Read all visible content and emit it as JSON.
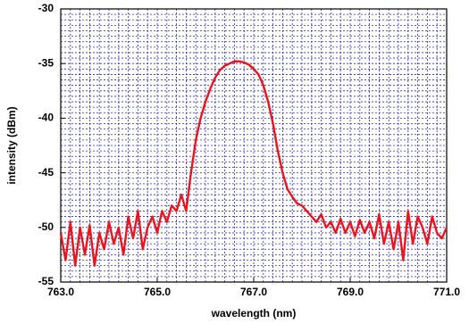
{
  "chart_data": {
    "type": "line",
    "xlabel": "wavelength (nm)",
    "ylabel": "intensity (dBm)",
    "xlim": [
      763,
      771
    ],
    "ylim": [
      -55,
      -30
    ],
    "xticks": [
      {
        "value": 763,
        "label": "763.0"
      },
      {
        "value": 765,
        "label": "765.0"
      },
      {
        "value": 767,
        "label": "767.0"
      },
      {
        "value": 769,
        "label": "769.0"
      },
      {
        "value": 771,
        "label": "771.0"
      }
    ],
    "yticks": [
      -55,
      -50,
      -45,
      -40,
      -35,
      -30
    ],
    "grid": true,
    "grid_color": "#2b2ba6",
    "x_minor_grid": [
      763,
      763.2,
      763.4,
      763.6,
      763.8,
      764,
      764.2,
      764.4,
      764.6,
      764.8,
      765,
      765.2,
      765.4,
      765.6,
      765.8,
      766,
      766.2,
      766.4,
      766.6,
      766.8,
      767,
      767.2,
      767.4,
      767.6,
      767.8,
      768,
      768.2,
      768.4,
      768.6,
      768.8,
      769,
      769.2,
      769.4,
      769.6,
      769.8,
      770,
      770.2,
      770.4,
      770.6,
      770.8,
      771
    ],
    "y_minor_grid": [
      -55,
      -54.5,
      -54,
      -53.5,
      -53,
      -52.5,
      -52,
      -51.5,
      -51,
      -50.5,
      -50,
      -49.5,
      -49,
      -48.5,
      -48,
      -47.5,
      -47,
      -46.5,
      -46,
      -45.5,
      -45,
      -44.5,
      -44,
      -43.5,
      -43,
      -42.5,
      -42,
      -41.5,
      -41,
      -40.5,
      -40,
      -39.5,
      -39,
      -38.5,
      -38,
      -37.5,
      -37,
      -36.5,
      -36,
      -35.5,
      -35,
      -34.5,
      -34,
      -33.5,
      -33,
      -32.5,
      -32,
      -31.5,
      -31,
      -30.5,
      -30
    ],
    "x": [
      763.0,
      763.1,
      763.2,
      763.3,
      763.4,
      763.5,
      763.6,
      763.7,
      763.8,
      763.9,
      764.0,
      764.1,
      764.2,
      764.3,
      764.4,
      764.5,
      764.6,
      764.7,
      764.8,
      764.9,
      765.0,
      765.1,
      765.2,
      765.3,
      765.4,
      765.5,
      765.6,
      765.7,
      765.8,
      765.9,
      766.0,
      766.1,
      766.2,
      766.3,
      766.4,
      766.5,
      766.6,
      766.7,
      766.8,
      766.9,
      767.0,
      767.1,
      767.2,
      767.3,
      767.4,
      767.5,
      767.6,
      767.7,
      767.8,
      767.9,
      768.0,
      768.1,
      768.2,
      768.3,
      768.4,
      768.5,
      768.6,
      768.7,
      768.8,
      768.9,
      769.0,
      769.1,
      769.2,
      769.3,
      769.4,
      769.5,
      769.6,
      769.7,
      769.8,
      769.9,
      770.0,
      770.1,
      770.2,
      770.3,
      770.4,
      770.5,
      770.6,
      770.7,
      770.8,
      770.9,
      771.0
    ],
    "series": [
      {
        "color": "#e8141e",
        "values": [
          -50.5,
          -53,
          -49.5,
          -53.5,
          -50,
          -52.5,
          -49.8,
          -53.5,
          -50.5,
          -52,
          -49.5,
          -51.5,
          -50,
          -52.5,
          -49,
          -51,
          -48.5,
          -52,
          -50,
          -49,
          -50.5,
          -48.5,
          -49.5,
          -48,
          -48.5,
          -47,
          -48.5,
          -45,
          -42,
          -40,
          -38.5,
          -37.3,
          -36.3,
          -35.6,
          -35.2,
          -35,
          -34.8,
          -34.8,
          -34.9,
          -35.1,
          -35.5,
          -36,
          -37,
          -38.5,
          -40.5,
          -43,
          -45,
          -46.5,
          -47.2,
          -47.8,
          -48,
          -48.5,
          -49,
          -49.5,
          -48.8,
          -50,
          -49.5,
          -50.5,
          -49.2,
          -50.5,
          -49.5,
          -50.8,
          -49.3,
          -50.5,
          -49.5,
          -51,
          -48.8,
          -51.5,
          -49.5,
          -52,
          -49.5,
          -53,
          -48.5,
          -51.5,
          -49,
          -50,
          -51.5,
          -49,
          -50.5,
          -51,
          -50
        ]
      }
    ]
  }
}
